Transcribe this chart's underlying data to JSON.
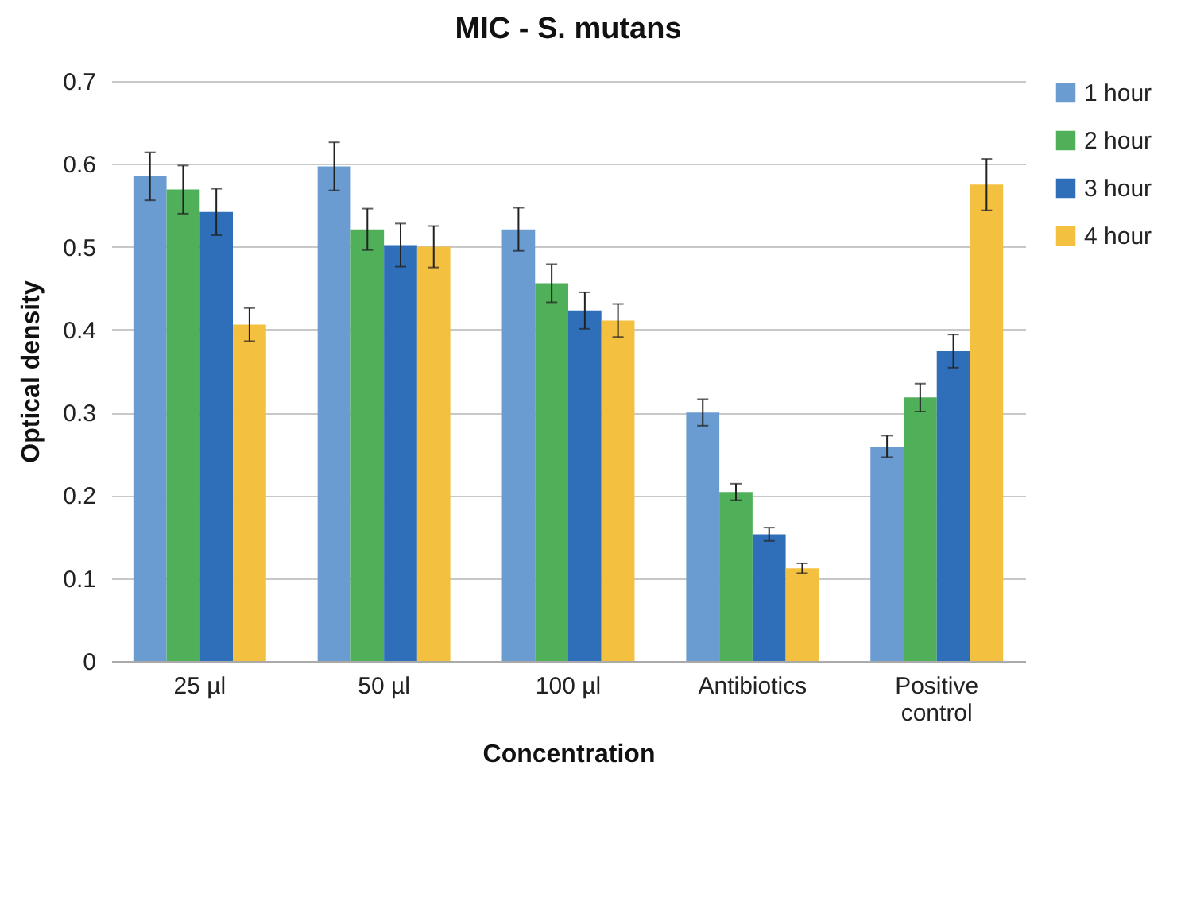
{
  "chart_data": {
    "type": "bar",
    "title": "MIC - S. mutans",
    "xlabel": "Concentration",
    "ylabel": "Optical density",
    "categories": [
      "25 µl",
      "50 µl",
      "100 µl",
      "Antibiotics",
      "Positive control"
    ],
    "series": [
      {
        "name": "1 hour",
        "color": "#6a9bd1",
        "values": [
          0.585,
          0.597,
          0.521,
          0.3,
          0.259
        ],
        "errors": [
          0.029,
          0.029,
          0.026,
          0.016,
          0.013
        ]
      },
      {
        "name": "2 hour",
        "color": "#50b05a",
        "values": [
          0.569,
          0.521,
          0.456,
          0.204,
          0.318
        ],
        "errors": [
          0.029,
          0.025,
          0.023,
          0.01,
          0.017
        ]
      },
      {
        "name": "3 hour",
        "color": "#2f6fba",
        "values": [
          0.542,
          0.502,
          0.423,
          0.153,
          0.374
        ],
        "errors": [
          0.028,
          0.026,
          0.022,
          0.008,
          0.02
        ]
      },
      {
        "name": "4 hour",
        "color": "#f4c040",
        "values": [
          0.406,
          0.5,
          0.411,
          0.112,
          0.575
        ],
        "errors": [
          0.02,
          0.025,
          0.02,
          0.006,
          0.031
        ]
      }
    ],
    "ylim": [
      0,
      0.7
    ],
    "yticks": [
      0,
      0.1,
      0.2,
      0.3,
      0.4,
      0.5,
      0.6,
      0.7
    ],
    "grid": "y",
    "legend": "right"
  }
}
